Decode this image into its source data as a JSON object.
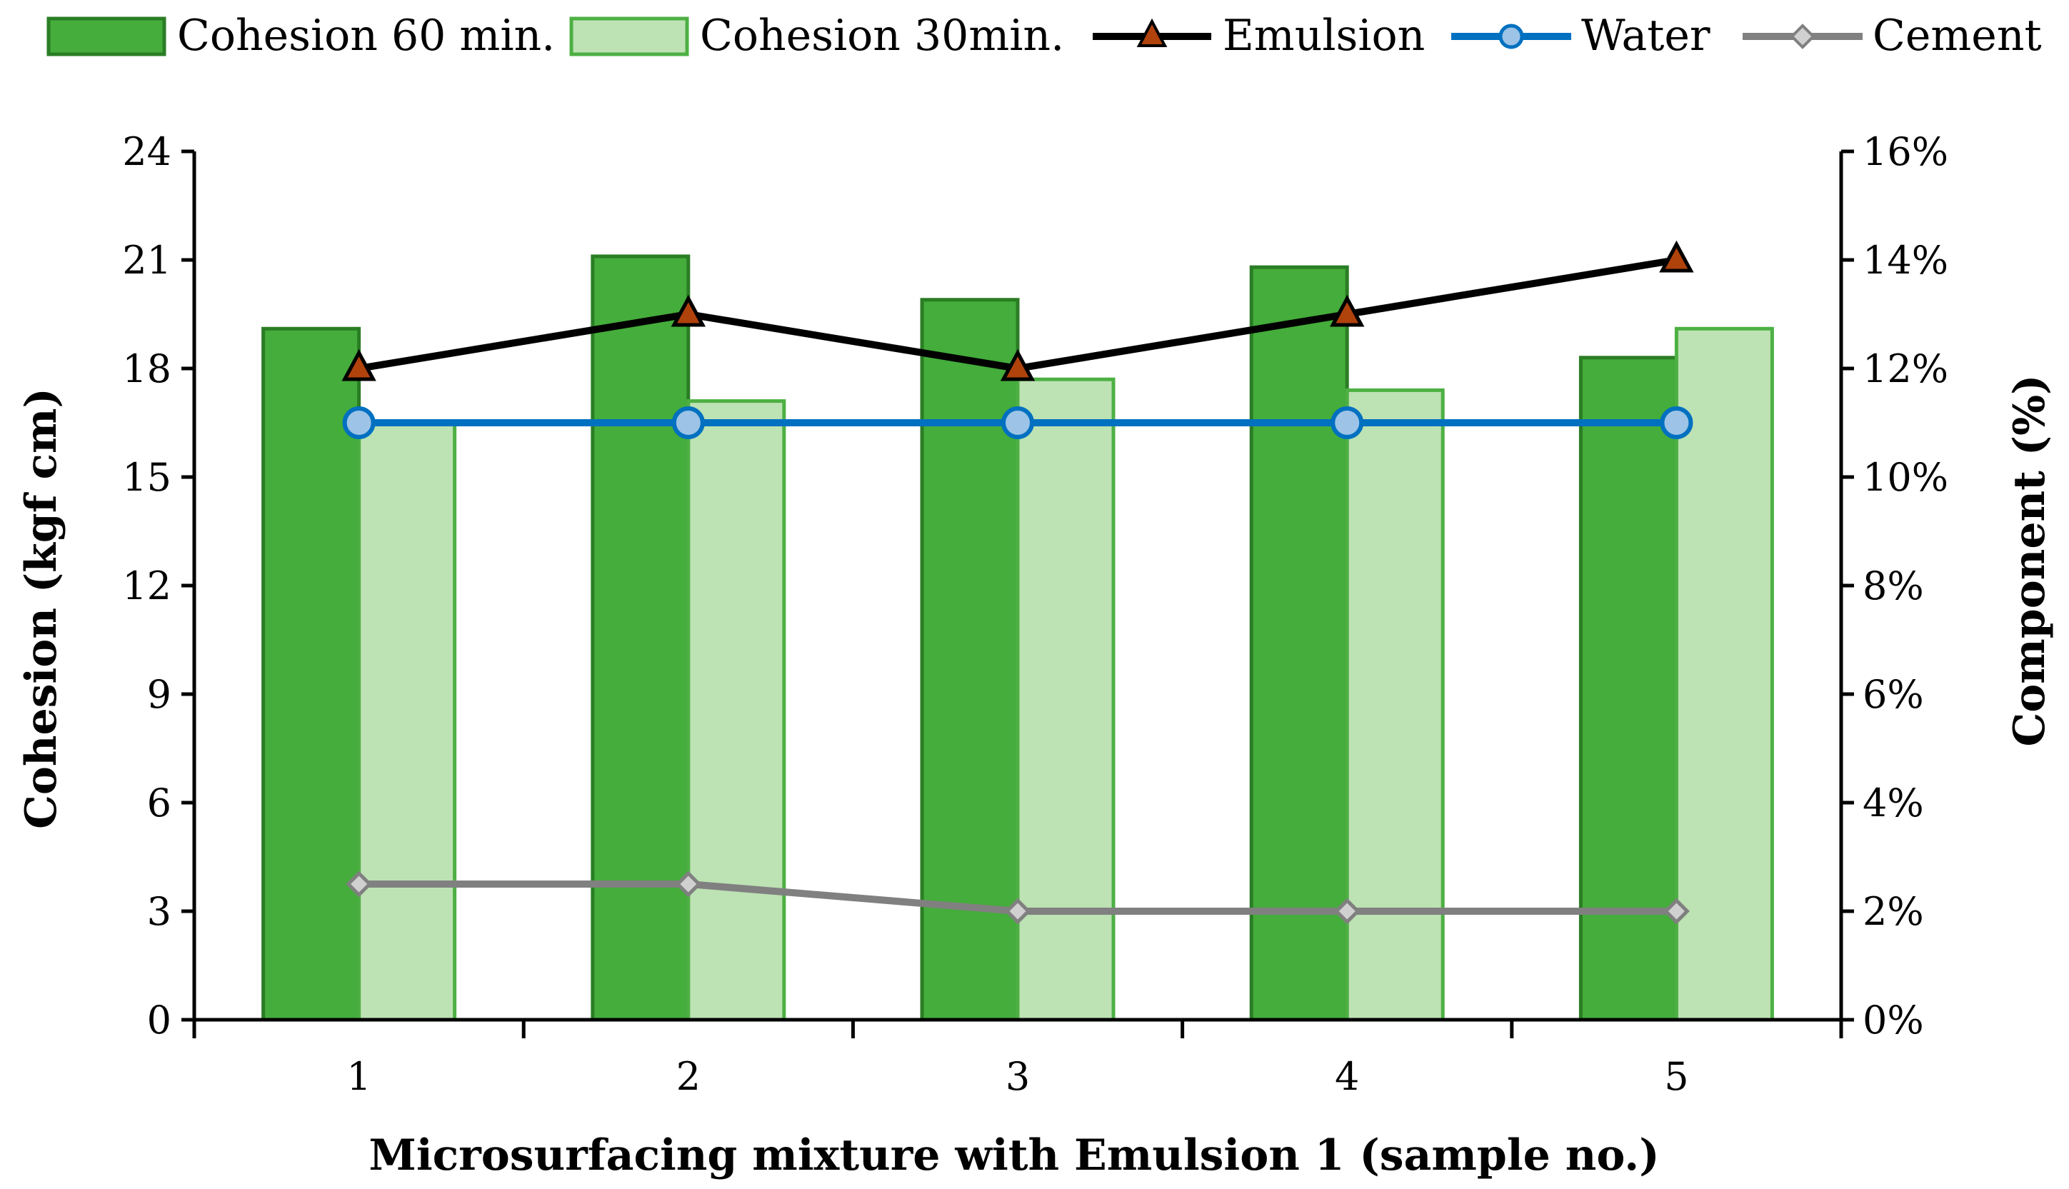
{
  "colors": {
    "bar60_fill": "#44AD3B",
    "bar60_stroke": "#2A7D24",
    "bar30_fill": "#BDE2B4",
    "bar30_stroke": "#4DB043",
    "emulsion_line": "#000000",
    "emulsion_marker": "#B0420C",
    "water_line": "#0070C0",
    "water_marker": "#9DC3E6",
    "cement_line": "#808080",
    "cement_marker": "#D0D0D0"
  },
  "chart_data": {
    "type": "bar",
    "categories": [
      "1",
      "2",
      "3",
      "4",
      "5"
    ],
    "xlabel": "Microsurfacing mixture with Emulsion 1 (sample no.)",
    "ylabel": "Cohesion (kgf cm)",
    "y2label": "Component (%)",
    "ylim": [
      0,
      24
    ],
    "y_ticks": [
      "0",
      "3",
      "6",
      "9",
      "12",
      "15",
      "18",
      "21",
      "24"
    ],
    "y2lim": [
      0,
      16
    ],
    "y2_ticks": [
      "0%",
      "2%",
      "4%",
      "6%",
      "8%",
      "10%",
      "12%",
      "14%",
      "16%"
    ],
    "grid": false,
    "legend_position": "top",
    "legend": [
      "Cohesion 60 min.",
      "Cohesion 30min.",
      "Emulsion",
      "Water",
      "Cement"
    ],
    "series": [
      {
        "name": "Cohesion 60 min.",
        "type": "bar",
        "axis": "left",
        "values": [
          19.1,
          21.1,
          19.9,
          20.8,
          18.3
        ]
      },
      {
        "name": "Cohesion 30min.",
        "type": "bar",
        "axis": "left",
        "values": [
          16.5,
          17.1,
          17.7,
          17.4,
          19.1
        ]
      },
      {
        "name": "Emulsion",
        "type": "line",
        "axis": "right",
        "marker": "triangle",
        "values": [
          12,
          13,
          12,
          13,
          14
        ]
      },
      {
        "name": "Water",
        "type": "line",
        "axis": "right",
        "marker": "circle",
        "values": [
          11,
          11,
          11,
          11,
          11
        ]
      },
      {
        "name": "Cement",
        "type": "line",
        "axis": "right",
        "marker": "diamond",
        "values": [
          2.5,
          2.5,
          2,
          2,
          2
        ]
      }
    ]
  }
}
